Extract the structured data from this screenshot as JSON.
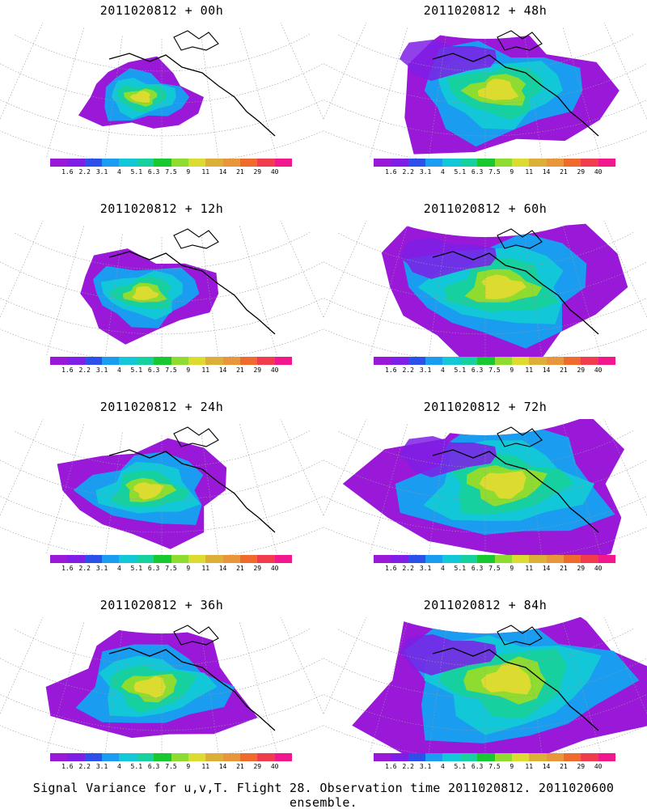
{
  "caption": "Signal Variance for u,v,T. Flight 28. Observation time 2011020812. 2011020600 ensemble.",
  "colorbar": {
    "colors": [
      "#9a18d8",
      "#7e1ee6",
      "#2e50ea",
      "#1a9cf0",
      "#12c8d8",
      "#16d0a0",
      "#18c830",
      "#8edc30",
      "#dcdc30",
      "#dcb038",
      "#e8963c",
      "#f06a2e",
      "#f03c4c",
      "#f0188c"
    ],
    "labels": [
      "1.6",
      "2.2",
      "3.1",
      "4",
      "5.1",
      "6.3",
      "7.5",
      "9",
      "11",
      "14",
      "21",
      "29",
      "40"
    ]
  },
  "panels": [
    {
      "title": "2011020812 + 00h",
      "level": 0
    },
    {
      "title": "2011020812 + 48h",
      "level": 4
    },
    {
      "title": "2011020812 + 12h",
      "level": 1
    },
    {
      "title": "2011020812 + 60h",
      "level": 5
    },
    {
      "title": "2011020812 + 24h",
      "level": 2
    },
    {
      "title": "2011020812 + 72h",
      "level": 6
    },
    {
      "title": "2011020812 + 36h",
      "level": 3
    },
    {
      "title": "2011020812 + 84h",
      "level": 7
    }
  ]
}
